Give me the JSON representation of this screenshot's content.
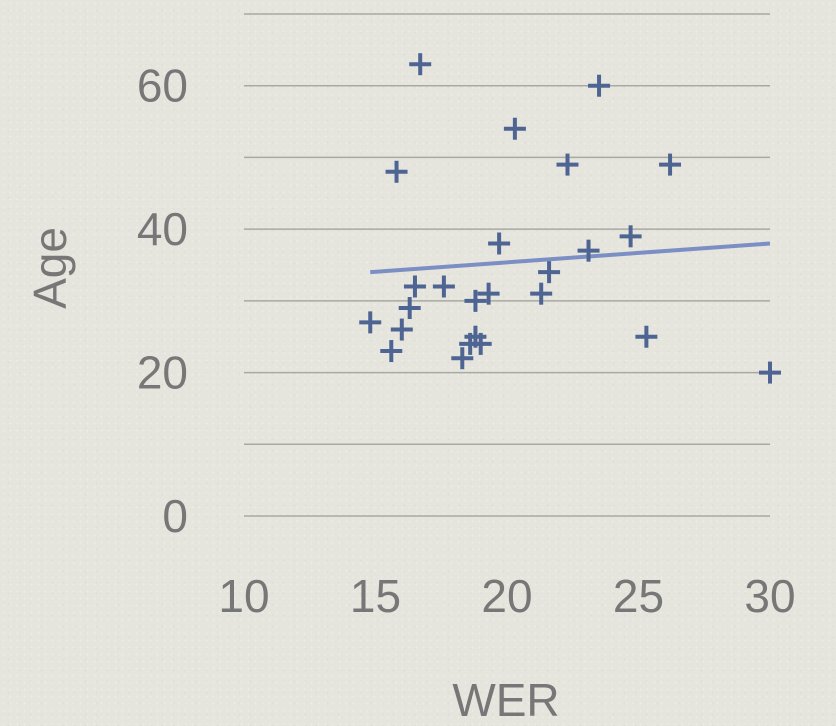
{
  "chart_data": {
    "type": "scatter",
    "title": "",
    "xlabel": "WER",
    "ylabel": "Age",
    "xlim": [
      10,
      30
    ],
    "ylim": [
      0,
      70
    ],
    "x_ticks": [
      10,
      15,
      20,
      25,
      30
    ],
    "y_ticks": [
      0,
      20,
      40,
      60
    ],
    "gridlines_y": [
      0,
      10,
      20,
      30,
      40,
      50,
      60,
      70
    ],
    "grid": true,
    "legend": "none",
    "marker": "plus",
    "colors": {
      "marker": "#4e6492",
      "trendline": "#7b8fc4",
      "gridline": "#a9a9a3",
      "text": "#777777"
    },
    "series": [
      {
        "points": [
          {
            "x": 14.8,
            "y": 27
          },
          {
            "x": 15.6,
            "y": 23
          },
          {
            "x": 15.8,
            "y": 48
          },
          {
            "x": 16.0,
            "y": 26
          },
          {
            "x": 16.3,
            "y": 29
          },
          {
            "x": 16.5,
            "y": 32
          },
          {
            "x": 16.7,
            "y": 63
          },
          {
            "x": 17.6,
            "y": 32
          },
          {
            "x": 18.3,
            "y": 22
          },
          {
            "x": 18.6,
            "y": 24
          },
          {
            "x": 18.8,
            "y": 30
          },
          {
            "x": 18.8,
            "y": 25
          },
          {
            "x": 19.0,
            "y": 24
          },
          {
            "x": 19.3,
            "y": 31
          },
          {
            "x": 19.7,
            "y": 38
          },
          {
            "x": 20.3,
            "y": 54
          },
          {
            "x": 21.3,
            "y": 31
          },
          {
            "x": 21.6,
            "y": 34
          },
          {
            "x": 22.3,
            "y": 49
          },
          {
            "x": 23.1,
            "y": 37
          },
          {
            "x": 23.5,
            "y": 60
          },
          {
            "x": 24.7,
            "y": 39
          },
          {
            "x": 25.3,
            "y": 25
          },
          {
            "x": 26.2,
            "y": 49
          },
          {
            "x": 30.0,
            "y": 20
          }
        ]
      }
    ],
    "trendline": {
      "x": [
        14.8,
        30.0
      ],
      "y": [
        34,
        38
      ]
    }
  }
}
